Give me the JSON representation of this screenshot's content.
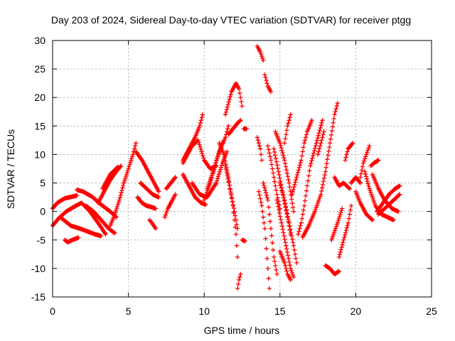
{
  "chart_data": {
    "type": "scatter",
    "title": "Day 203 of 2024, Sidereal Day-to-day VTEC variation (SDTVAR) for receiver ptgg",
    "xlabel": "GPS time / hours",
    "ylabel": "SDTVAR / TECUs",
    "xlim": [
      0,
      25
    ],
    "ylim": [
      -15,
      30
    ],
    "xticks": [
      "0",
      "5",
      "10",
      "15",
      "20",
      "25"
    ],
    "yticks": [
      "-15",
      "-10",
      "-5",
      "0",
      "5",
      "10",
      "15",
      "20",
      "25",
      "30"
    ],
    "grid": true,
    "marker": "plus",
    "series_color": "#ff0000",
    "tracks": [
      [
        [
          0.0,
          -2.5
        ],
        [
          0.4,
          -1.2
        ],
        [
          0.9,
          0.0
        ],
        [
          1.4,
          0.8
        ],
        [
          1.9,
          1.5
        ],
        [
          2.4,
          0.2
        ],
        [
          3.0,
          -2.0
        ],
        [
          3.5,
          -4.0
        ]
      ],
      [
        [
          0.0,
          0.5
        ],
        [
          0.3,
          1.5
        ],
        [
          0.8,
          2.3
        ],
        [
          1.3,
          2.6
        ],
        [
          1.6,
          2.8
        ]
      ],
      [
        [
          0.5,
          -1.0
        ],
        [
          1.2,
          -2.5
        ],
        [
          1.8,
          -3.0
        ],
        [
          2.3,
          -3.5
        ],
        [
          2.8,
          -4.0
        ],
        [
          3.2,
          -4.3
        ]
      ],
      [
        [
          0.8,
          -5.0
        ],
        [
          1.0,
          -5.4
        ],
        [
          1.3,
          -5.0
        ],
        [
          1.7,
          -4.6
        ]
      ],
      [
        [
          1.6,
          3.8
        ],
        [
          2.0,
          3.5
        ],
        [
          2.6,
          2.6
        ],
        [
          3.2,
          1.2
        ],
        [
          3.8,
          0.0
        ],
        [
          4.2,
          -1.0
        ]
      ],
      [
        [
          2.2,
          1.0
        ],
        [
          2.7,
          0.0
        ],
        [
          3.2,
          -1.5
        ],
        [
          3.7,
          -3.0
        ],
        [
          4.1,
          -3.8
        ]
      ],
      [
        [
          3.0,
          1.5
        ],
        [
          3.4,
          3.5
        ],
        [
          3.8,
          5.5
        ],
        [
          4.2,
          7.0
        ],
        [
          4.5,
          8.0
        ]
      ],
      [
        [
          3.3,
          4.0
        ],
        [
          3.8,
          6.5
        ],
        [
          4.3,
          7.8
        ]
      ],
      [
        [
          3.8,
          -2.5
        ],
        [
          4.1,
          -0.5
        ],
        [
          4.4,
          2.0
        ],
        [
          4.7,
          5.0
        ],
        [
          5.0,
          7.5
        ],
        [
          5.3,
          10.0
        ],
        [
          5.5,
          12.0
        ]
      ],
      [
        [
          5.5,
          10.5
        ],
        [
          5.9,
          9.0
        ],
        [
          6.3,
          7.0
        ],
        [
          6.7,
          5.0
        ],
        [
          7.0,
          3.5
        ]
      ],
      [
        [
          5.6,
          2.5
        ],
        [
          5.9,
          1.5
        ],
        [
          6.2,
          1.0
        ],
        [
          6.5,
          0.8
        ],
        [
          6.8,
          0.5
        ]
      ],
      [
        [
          5.8,
          5.0
        ],
        [
          6.2,
          4.0
        ],
        [
          6.6,
          3.0
        ],
        [
          7.0,
          2.5
        ]
      ],
      [
        [
          6.4,
          -1.5
        ],
        [
          6.6,
          -2.2
        ],
        [
          6.8,
          -3.0
        ]
      ],
      [
        [
          7.4,
          -1.0
        ],
        [
          7.6,
          0.5
        ],
        [
          7.9,
          2.0
        ],
        [
          8.1,
          3.0
        ]
      ],
      [
        [
          7.5,
          4.0
        ],
        [
          7.8,
          5.0
        ],
        [
          8.1,
          6.0
        ]
      ],
      [
        [
          8.6,
          9.0
        ],
        [
          9.0,
          11.0
        ],
        [
          9.4,
          13.0
        ],
        [
          9.7,
          15.0
        ],
        [
          9.9,
          17.0
        ]
      ],
      [
        [
          8.6,
          6.5
        ],
        [
          9.0,
          4.5
        ],
        [
          9.4,
          2.5
        ],
        [
          9.8,
          1.5
        ],
        [
          10.1,
          1.2
        ]
      ],
      [
        [
          8.6,
          8.5
        ],
        [
          9.2,
          11.5
        ],
        [
          9.6,
          12.5
        ],
        [
          10.0,
          9.0
        ],
        [
          10.4,
          7.5
        ],
        [
          10.8,
          8.0
        ]
      ],
      [
        [
          9.2,
          5.0
        ],
        [
          9.7,
          3.0
        ],
        [
          10.2,
          2.5
        ],
        [
          10.8,
          5.0
        ],
        [
          11.2,
          8.5
        ],
        [
          11.5,
          10.5
        ]
      ],
      [
        [
          10.2,
          4.0
        ],
        [
          10.6,
          7.0
        ],
        [
          11.0,
          10.5
        ],
        [
          11.4,
          13.0
        ],
        [
          11.6,
          15.0
        ]
      ],
      [
        [
          10.0,
          2.0
        ],
        [
          10.4,
          5.0
        ],
        [
          10.8,
          9.0
        ],
        [
          11.2,
          12.0
        ]
      ],
      [
        [
          11.0,
          12.0
        ],
        [
          11.3,
          10.0
        ],
        [
          11.6,
          6.0
        ],
        [
          11.9,
          1.0
        ],
        [
          12.1,
          -4.0
        ],
        [
          12.2,
          -8.0
        ]
      ],
      [
        [
          11.6,
          13.5
        ],
        [
          11.9,
          14.5
        ],
        [
          12.2,
          15.5
        ],
        [
          12.4,
          16.0
        ]
      ],
      [
        [
          11.4,
          8.0
        ],
        [
          11.7,
          4.0
        ],
        [
          12.0,
          0.0
        ],
        [
          12.2,
          -3.0
        ]
      ],
      [
        [
          11.4,
          17.0
        ],
        [
          11.8,
          21.0
        ],
        [
          12.1,
          22.5
        ],
        [
          12.3,
          21.5
        ],
        [
          12.5,
          18.5
        ]
      ],
      [
        [
          12.2,
          -13.5
        ],
        [
          12.3,
          -12.0
        ],
        [
          12.4,
          -11.0
        ]
      ],
      [
        [
          12.5,
          -5.0
        ],
        [
          12.7,
          -5.2
        ]
      ],
      [
        [
          12.6,
          14.5
        ],
        [
          12.8,
          14.5
        ]
      ],
      [
        [
          13.5,
          29.0
        ],
        [
          13.7,
          28.0
        ],
        [
          13.9,
          26.5
        ]
      ],
      [
        [
          14.0,
          24.0
        ],
        [
          14.2,
          22.0
        ],
        [
          14.4,
          21.0
        ]
      ],
      [
        [
          13.5,
          13.0
        ],
        [
          13.7,
          11.0
        ],
        [
          13.8,
          9.0
        ]
      ],
      [
        [
          13.6,
          3.5
        ],
        [
          13.8,
          1.0
        ],
        [
          14.0,
          -3.0
        ],
        [
          14.1,
          -6.5
        ],
        [
          14.2,
          -10.0
        ],
        [
          14.3,
          -13.5
        ]
      ],
      [
        [
          13.9,
          5.0
        ],
        [
          14.2,
          2.0
        ],
        [
          14.4,
          -3.0
        ],
        [
          14.6,
          -8.0
        ],
        [
          14.8,
          -11.0
        ]
      ],
      [
        [
          14.2,
          11.5
        ],
        [
          14.4,
          9.0
        ],
        [
          14.6,
          6.0
        ],
        [
          14.8,
          3.0
        ],
        [
          15.0,
          0.5
        ]
      ],
      [
        [
          14.6,
          11.0
        ],
        [
          14.9,
          7.0
        ],
        [
          15.2,
          3.0
        ],
        [
          15.5,
          -1.0
        ],
        [
          15.7,
          -4.0
        ]
      ],
      [
        [
          14.7,
          14.0
        ],
        [
          15.0,
          12.0
        ],
        [
          15.3,
          9.0
        ],
        [
          15.6,
          5.0
        ],
        [
          15.9,
          0.0
        ]
      ],
      [
        [
          15.3,
          12.0
        ],
        [
          15.5,
          15.0
        ],
        [
          15.7,
          17.0
        ]
      ],
      [
        [
          14.8,
          2.0
        ],
        [
          15.1,
          -2.0
        ],
        [
          15.4,
          -6.0
        ],
        [
          15.7,
          -10.0
        ],
        [
          15.9,
          -11.5
        ]
      ],
      [
        [
          15.0,
          5.0
        ],
        [
          15.3,
          2.0
        ],
        [
          15.6,
          -2.0
        ],
        [
          15.9,
          -6.0
        ],
        [
          16.1,
          -9.0
        ]
      ],
      [
        [
          15.0,
          -7.0
        ],
        [
          15.3,
          -9.0
        ],
        [
          15.5,
          -11.0
        ],
        [
          15.7,
          -12.0
        ]
      ],
      [
        [
          15.8,
          3.0
        ],
        [
          16.1,
          6.0
        ],
        [
          16.4,
          9.0
        ],
        [
          16.6,
          12.0
        ],
        [
          16.8,
          14.0
        ],
        [
          17.1,
          16.0
        ]
      ],
      [
        [
          16.2,
          -4.0
        ],
        [
          16.4,
          -2.0
        ],
        [
          16.6,
          1.0
        ],
        [
          16.8,
          4.5
        ],
        [
          17.0,
          8.0
        ],
        [
          17.4,
          12.0
        ],
        [
          17.8,
          16.0
        ]
      ],
      [
        [
          16.5,
          -4.5
        ],
        [
          16.9,
          -2.5
        ],
        [
          17.3,
          0.0
        ],
        [
          17.7,
          3.0
        ],
        [
          18.0,
          7.0
        ],
        [
          18.3,
          12.0
        ],
        [
          18.6,
          17.0
        ],
        [
          18.8,
          19.0
        ]
      ],
      [
        [
          17.5,
          10.0
        ],
        [
          17.7,
          12.0
        ],
        [
          17.9,
          14.0
        ]
      ],
      [
        [
          18.0,
          -9.5
        ],
        [
          18.3,
          -10.0
        ],
        [
          18.6,
          -11.0
        ],
        [
          18.9,
          -10.5
        ]
      ],
      [
        [
          18.9,
          -8.0
        ],
        [
          19.2,
          -5.0
        ],
        [
          19.5,
          -2.0
        ],
        [
          19.7,
          1.0
        ]
      ],
      [
        [
          18.4,
          -5.0
        ],
        [
          18.8,
          -2.0
        ],
        [
          19.1,
          0.5
        ]
      ],
      [
        [
          18.6,
          6.0
        ],
        [
          18.9,
          4.5
        ],
        [
          19.2,
          5.0
        ],
        [
          19.6,
          4.0
        ]
      ],
      [
        [
          19.3,
          9.0
        ],
        [
          19.5,
          11.0
        ],
        [
          19.8,
          12.0
        ]
      ],
      [
        [
          19.7,
          5.0
        ],
        [
          20.0,
          6.0
        ],
        [
          20.3,
          5.0
        ]
      ],
      [
        [
          20.0,
          3.5
        ],
        [
          20.3,
          1.5
        ],
        [
          20.7,
          -0.5
        ],
        [
          21.1,
          -1.5
        ]
      ],
      [
        [
          20.3,
          6.0
        ],
        [
          20.5,
          8.5
        ],
        [
          20.7,
          10.0
        ],
        [
          20.9,
          11.5
        ]
      ],
      [
        [
          20.6,
          7.0
        ],
        [
          20.9,
          4.0
        ],
        [
          21.3,
          1.0
        ],
        [
          21.7,
          -0.5
        ],
        [
          22.1,
          -1.0
        ],
        [
          22.5,
          -1.5
        ]
      ],
      [
        [
          21.0,
          8.0
        ],
        [
          21.2,
          8.5
        ],
        [
          21.5,
          9.0
        ]
      ],
      [
        [
          21.1,
          6.5
        ],
        [
          21.5,
          4.0
        ],
        [
          21.9,
          2.0
        ],
        [
          22.4,
          0.5
        ],
        [
          22.8,
          0.0
        ]
      ],
      [
        [
          21.4,
          0.0
        ],
        [
          21.8,
          1.5
        ],
        [
          22.2,
          3.0
        ],
        [
          22.6,
          4.0
        ],
        [
          22.9,
          4.5
        ]
      ],
      [
        [
          21.5,
          -0.5
        ],
        [
          21.9,
          0.5
        ],
        [
          22.3,
          1.5
        ],
        [
          22.7,
          2.5
        ],
        [
          22.9,
          3.0
        ]
      ]
    ]
  }
}
